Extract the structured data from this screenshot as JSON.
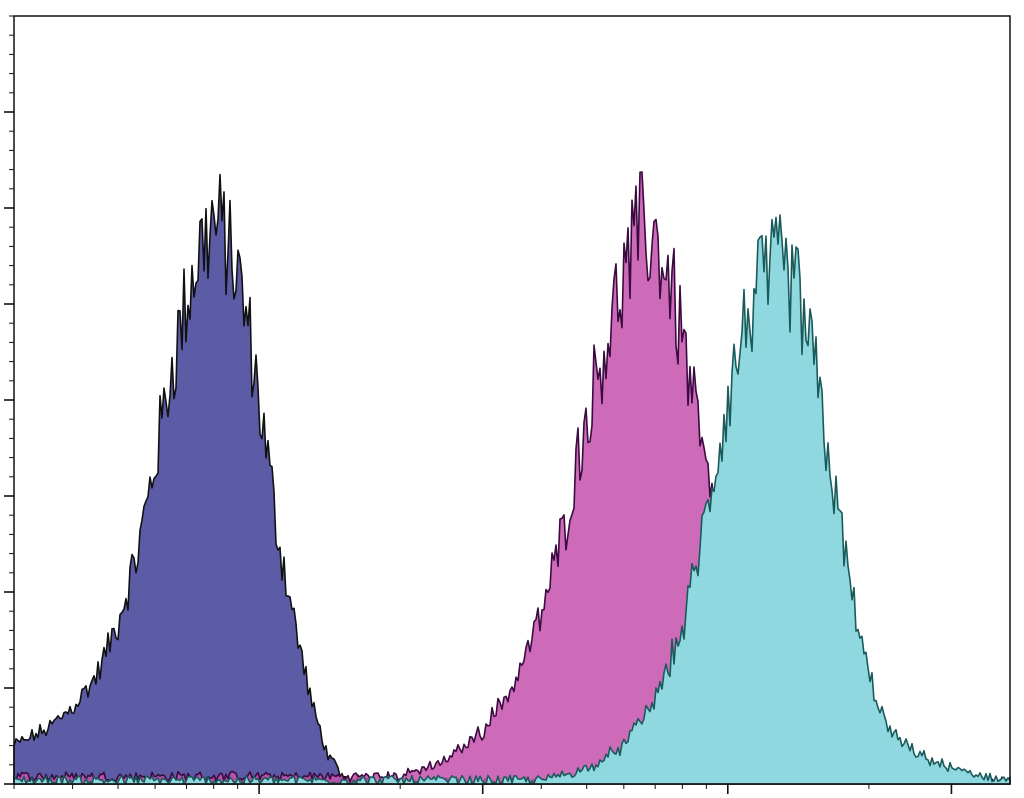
{
  "chart_data": {
    "type": "area",
    "title": "",
    "xlabel": "",
    "ylabel": "",
    "x_scale": "log",
    "xlim": [
      0.3,
      40
    ],
    "ylim": [
      0,
      100
    ],
    "x_major_ticks": [
      1,
      3,
      10,
      30
    ],
    "y_major_ticks": [
      0,
      12.5,
      25,
      37.5,
      50,
      62.5,
      75,
      87.5
    ],
    "grid": false,
    "legend": "none",
    "series": [
      {
        "color": "#5b5ba6",
        "stroke": "#111111",
        "x": [
          0.3,
          0.35,
          0.4,
          0.45,
          0.5,
          0.55,
          0.6,
          0.65,
          0.7,
          0.75,
          0.8,
          0.85,
          0.9,
          0.95,
          1.0,
          1.05,
          1.1,
          1.2,
          1.3,
          1.4,
          1.5,
          1.7,
          2.0
        ],
        "y": [
          5,
          7,
          10,
          14,
          21,
          30,
          42,
          54,
          63,
          70,
          73,
          71,
          66,
          59,
          50,
          41,
          32,
          20,
          10,
          4,
          1,
          0.3,
          0
        ]
      },
      {
        "color": "#c651ad",
        "stroke": "#3a0a40",
        "x": [
          2.0,
          2.5,
          3.0,
          3.5,
          4.0,
          4.5,
          5.0,
          5.5,
          6.0,
          6.5,
          7.0,
          7.5,
          8.0,
          9.0,
          10.0,
          11.0,
          12.0,
          13.0,
          14.0,
          15.0,
          16.0,
          18.0,
          20.0
        ],
        "y": [
          1,
          3,
          7,
          13,
          22,
          34,
          48,
          58,
          66,
          72,
          71,
          66,
          58,
          40,
          25,
          15,
          9,
          6,
          4,
          3,
          2,
          1,
          0.5
        ]
      },
      {
        "color": "#8fd8e0",
        "stroke": "#1a5a5a",
        "x": [
          4.0,
          5.0,
          6.0,
          7.0,
          8.0,
          9.0,
          10.0,
          11.0,
          12.0,
          13.0,
          14.0,
          15.0,
          16.0,
          17.0,
          18.0,
          19.0,
          20.0,
          22.0,
          25.0,
          30.0,
          35.0,
          40.0
        ],
        "y": [
          0.5,
          2,
          5,
          11,
          20,
          35,
          50,
          61,
          66,
          67,
          64,
          57,
          47,
          37,
          28,
          20,
          14,
          7,
          4,
          2,
          1,
          0.5
        ]
      }
    ]
  }
}
